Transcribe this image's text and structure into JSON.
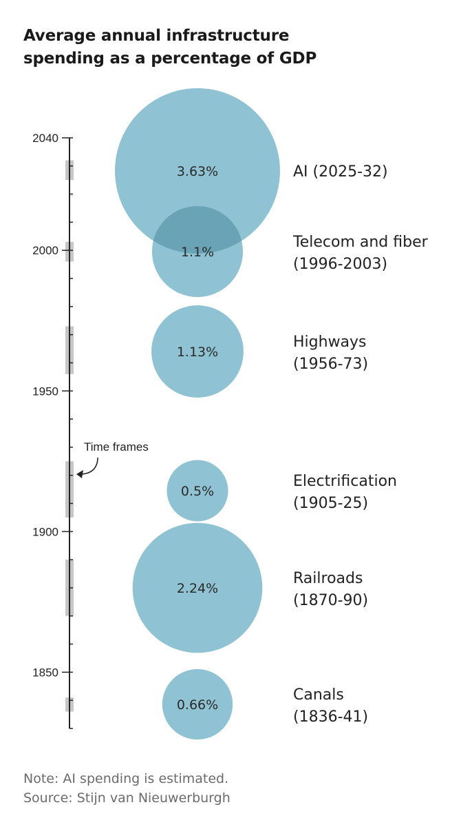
{
  "title_lines": [
    "Average annual infrastructure",
    "spending as a percentage of GDP"
  ],
  "chart_data": {
    "type": "bubble-timeline",
    "title": "Average annual infrastructure spending as a percentage of GDP",
    "axis": {
      "ylim": [
        1830,
        2040
      ],
      "ticks": [
        1850,
        1900,
        1950,
        2000,
        2040
      ],
      "tick_labels": [
        "1850",
        "1900",
        "1950",
        "2000",
        "2040"
      ],
      "minor_step": 10
    },
    "items": [
      {
        "name_lines": [
          "AI (2025-32)"
        ],
        "start": 2025,
        "end": 2032,
        "value": 3.63,
        "value_label": "3.63%"
      },
      {
        "name_lines": [
          "Telecom and fiber",
          "(1996-2003)"
        ],
        "start": 1996,
        "end": 2003,
        "value": 1.1,
        "value_label": "1.1%"
      },
      {
        "name_lines": [
          "Highways",
          "(1956-73)"
        ],
        "start": 1956,
        "end": 1973,
        "value": 1.13,
        "value_label": "1.13%"
      },
      {
        "name_lines": [
          "Electrification",
          "(1905-25)"
        ],
        "start": 1905,
        "end": 1925,
        "value": 0.5,
        "value_label": "0.5%"
      },
      {
        "name_lines": [
          "Railroads",
          "(1870-90)"
        ],
        "start": 1870,
        "end": 1890,
        "value": 2.24,
        "value_label": "2.24%"
      },
      {
        "name_lines": [
          "Canals",
          "(1836-41)"
        ],
        "start": 1836,
        "end": 1841,
        "value": 0.66,
        "value_label": "0.66%"
      }
    ],
    "annotation": "Time frames",
    "colors": {
      "bubble": "#8fc3d3",
      "bubble_overlap": "#6aa3b6",
      "timeframe": "#c6c6c6",
      "axis": "#222222"
    }
  },
  "notes": [
    "Note: AI spending is estimated.",
    "Source: Stijn van Nieuwerburgh"
  ]
}
